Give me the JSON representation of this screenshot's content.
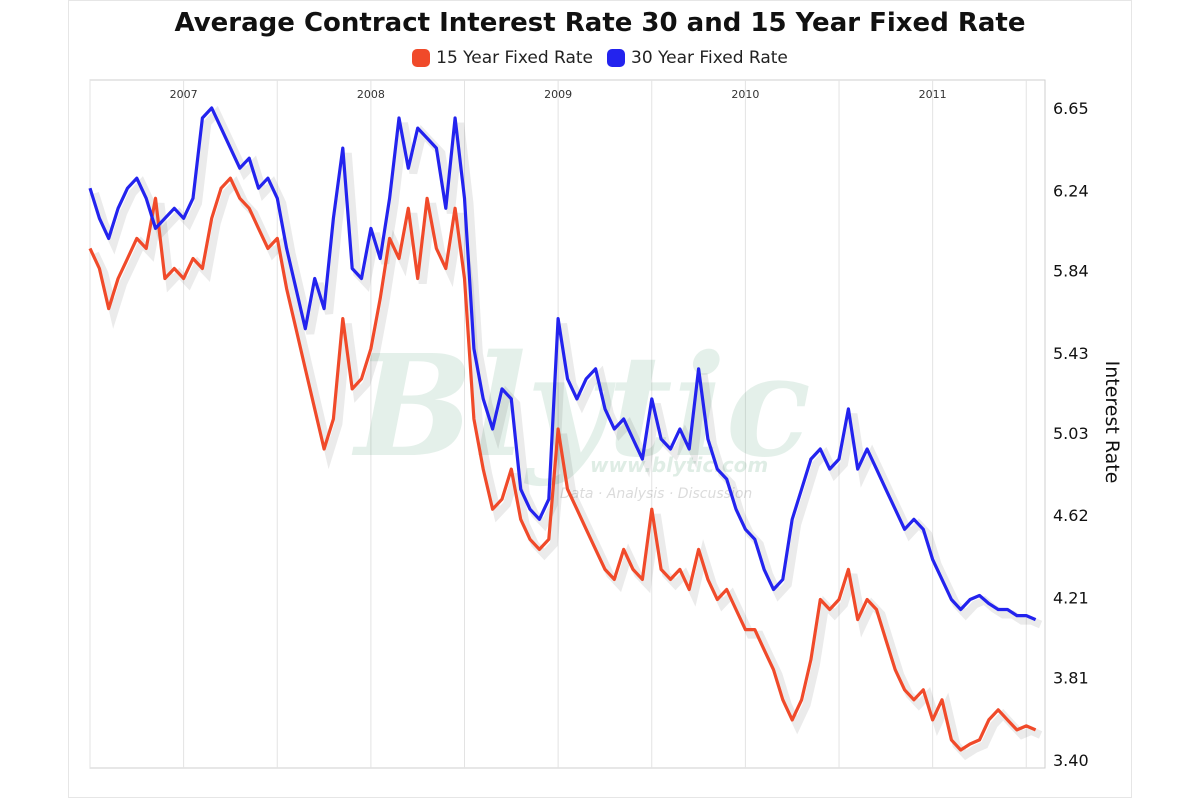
{
  "chart_data": {
    "type": "line",
    "title": "Average Contract Interest Rate 30 and 15 Year Fixed Rate",
    "xlabel": "",
    "ylabel": "Interest Rate",
    "x_range": [
      2006.5,
      2011.6
    ],
    "ylim": [
      3.4,
      6.65
    ],
    "yticks": [
      "3.40",
      "3.81",
      "4.21",
      "4.62",
      "5.03",
      "5.43",
      "5.84",
      "6.24",
      "6.65"
    ],
    "xticks": [
      {
        "label": "2007",
        "x": 2007.0
      },
      {
        "label": "2008",
        "x": 2008.0
      },
      {
        "label": "2009",
        "x": 2009.0
      },
      {
        "label": "2010",
        "x": 2010.0
      },
      {
        "label": "2011",
        "x": 2011.0
      }
    ],
    "grid": true,
    "legend_position": "top-center",
    "watermark": {
      "brand": "Blytic",
      "url": "www.blytic.com",
      "tagline": "Data · Analysis · Discussion"
    },
    "series": [
      {
        "name": "15 Year Fixed Rate",
        "color": "#f04a2a",
        "x": [
          2006.5,
          2006.55,
          2006.6,
          2006.65,
          2006.7,
          2006.75,
          2006.8,
          2006.85,
          2006.9,
          2006.95,
          2007.0,
          2007.05,
          2007.1,
          2007.15,
          2007.2,
          2007.25,
          2007.3,
          2007.35,
          2007.4,
          2007.45,
          2007.5,
          2007.55,
          2007.6,
          2007.65,
          2007.7,
          2007.75,
          2007.8,
          2007.85,
          2007.9,
          2007.95,
          2008.0,
          2008.05,
          2008.1,
          2008.15,
          2008.2,
          2008.25,
          2008.3,
          2008.35,
          2008.4,
          2008.45,
          2008.5,
          2008.55,
          2008.6,
          2008.65,
          2008.7,
          2008.75,
          2008.8,
          2008.85,
          2008.9,
          2008.95,
          2009.0,
          2009.05,
          2009.1,
          2009.15,
          2009.2,
          2009.25,
          2009.3,
          2009.35,
          2009.4,
          2009.45,
          2009.5,
          2009.55,
          2009.6,
          2009.65,
          2009.7,
          2009.75,
          2009.8,
          2009.85,
          2009.9,
          2009.95,
          2010.0,
          2010.05,
          2010.1,
          2010.15,
          2010.2,
          2010.25,
          2010.3,
          2010.35,
          2010.4,
          2010.45,
          2010.5,
          2010.55,
          2010.6,
          2010.65,
          2010.7,
          2010.75,
          2010.8,
          2010.85,
          2010.9,
          2010.95,
          2011.0,
          2011.05,
          2011.1,
          2011.15,
          2011.2,
          2011.25,
          2011.3,
          2011.35,
          2011.4,
          2011.45,
          2011.5,
          2011.55
        ],
        "values": [
          5.95,
          5.85,
          5.65,
          5.8,
          5.9,
          6.0,
          5.95,
          6.2,
          5.8,
          5.85,
          5.8,
          5.9,
          5.85,
          6.1,
          6.25,
          6.3,
          6.2,
          6.15,
          6.05,
          5.95,
          6.0,
          5.75,
          5.55,
          5.35,
          5.15,
          4.95,
          5.1,
          5.6,
          5.25,
          5.3,
          5.45,
          5.7,
          6.0,
          5.9,
          6.15,
          5.8,
          6.2,
          5.95,
          5.85,
          6.15,
          5.8,
          5.1,
          4.85,
          4.65,
          4.7,
          4.85,
          4.6,
          4.5,
          4.45,
          4.5,
          5.05,
          4.75,
          4.65,
          4.55,
          4.45,
          4.35,
          4.3,
          4.45,
          4.35,
          4.3,
          4.65,
          4.35,
          4.3,
          4.35,
          4.25,
          4.45,
          4.3,
          4.2,
          4.25,
          4.15,
          4.05,
          4.05,
          3.95,
          3.85,
          3.7,
          3.6,
          3.7,
          3.9,
          4.2,
          4.15,
          4.2,
          4.35,
          4.1,
          4.2,
          4.15,
          4.0,
          3.85,
          3.75,
          3.7,
          3.75,
          3.6,
          3.7,
          3.5,
          3.45,
          3.48,
          3.5,
          3.6,
          3.65,
          3.6,
          3.55,
          3.57,
          3.55
        ]
      },
      {
        "name": "30 Year Fixed Rate",
        "color": "#2323ee",
        "x": [
          2006.5,
          2006.55,
          2006.6,
          2006.65,
          2006.7,
          2006.75,
          2006.8,
          2006.85,
          2006.9,
          2006.95,
          2007.0,
          2007.05,
          2007.1,
          2007.15,
          2007.2,
          2007.25,
          2007.3,
          2007.35,
          2007.4,
          2007.45,
          2007.5,
          2007.55,
          2007.6,
          2007.65,
          2007.7,
          2007.75,
          2007.8,
          2007.85,
          2007.9,
          2007.95,
          2008.0,
          2008.05,
          2008.1,
          2008.15,
          2008.2,
          2008.25,
          2008.3,
          2008.35,
          2008.4,
          2008.45,
          2008.5,
          2008.55,
          2008.6,
          2008.65,
          2008.7,
          2008.75,
          2008.8,
          2008.85,
          2008.9,
          2008.95,
          2009.0,
          2009.05,
          2009.1,
          2009.15,
          2009.2,
          2009.25,
          2009.3,
          2009.35,
          2009.4,
          2009.45,
          2009.5,
          2009.55,
          2009.6,
          2009.65,
          2009.7,
          2009.75,
          2009.8,
          2009.85,
          2009.9,
          2009.95,
          2010.0,
          2010.05,
          2010.1,
          2010.15,
          2010.2,
          2010.25,
          2010.3,
          2010.35,
          2010.4,
          2010.45,
          2010.5,
          2010.55,
          2010.6,
          2010.65,
          2010.7,
          2010.75,
          2010.8,
          2010.85,
          2010.9,
          2010.95,
          2011.0,
          2011.05,
          2011.1,
          2011.15,
          2011.2,
          2011.25,
          2011.3,
          2011.35,
          2011.4,
          2011.45,
          2011.5,
          2011.55
        ],
        "values": [
          6.25,
          6.1,
          6.0,
          6.15,
          6.25,
          6.3,
          6.2,
          6.05,
          6.1,
          6.15,
          6.1,
          6.2,
          6.6,
          6.65,
          6.55,
          6.45,
          6.35,
          6.4,
          6.25,
          6.3,
          6.2,
          5.95,
          5.75,
          5.55,
          5.8,
          5.65,
          6.1,
          6.45,
          5.85,
          5.8,
          6.05,
          5.9,
          6.2,
          6.6,
          6.35,
          6.55,
          6.5,
          6.45,
          6.15,
          6.6,
          6.2,
          5.45,
          5.2,
          5.05,
          5.25,
          5.2,
          4.75,
          4.65,
          4.6,
          4.7,
          5.6,
          5.3,
          5.2,
          5.3,
          5.35,
          5.15,
          5.05,
          5.1,
          5.0,
          4.9,
          5.2,
          5.0,
          4.95,
          5.05,
          4.95,
          5.35,
          5.0,
          4.85,
          4.8,
          4.65,
          4.55,
          4.5,
          4.35,
          4.25,
          4.3,
          4.6,
          4.75,
          4.9,
          4.95,
          4.85,
          4.9,
          5.15,
          4.85,
          4.95,
          4.85,
          4.75,
          4.65,
          4.55,
          4.6,
          4.55,
          4.4,
          4.3,
          4.2,
          4.15,
          4.2,
          4.22,
          4.18,
          4.15,
          4.15,
          4.12,
          4.12,
          4.1
        ]
      }
    ]
  }
}
